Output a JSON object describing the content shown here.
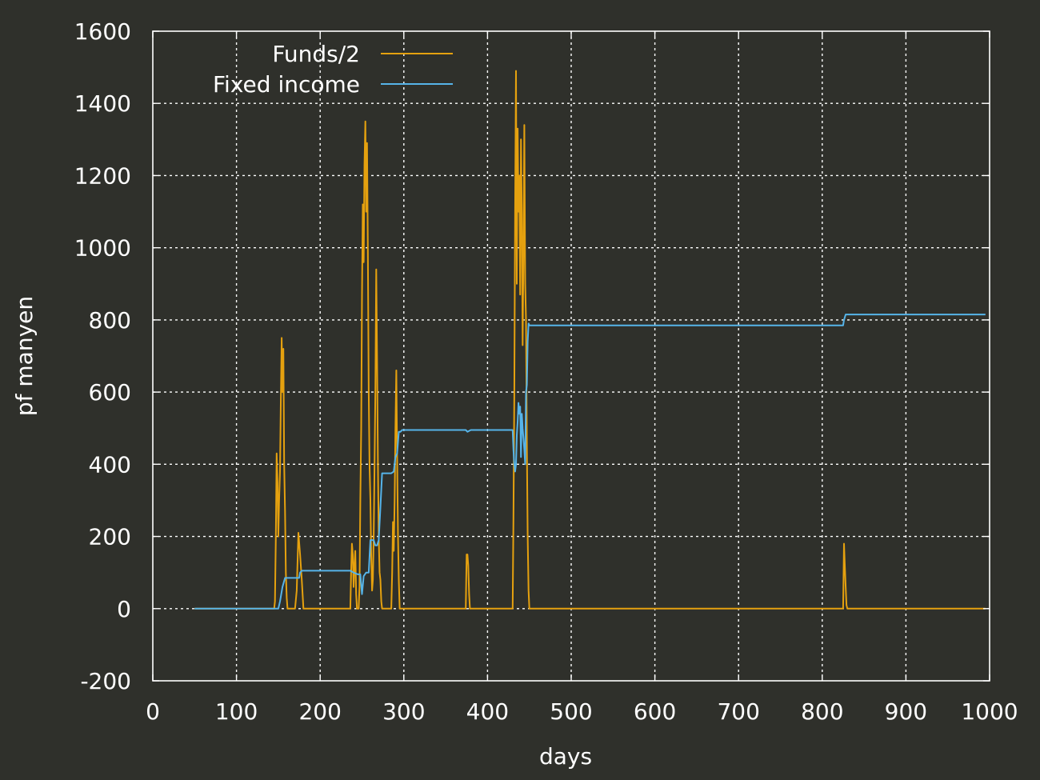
{
  "colors": {
    "background": "#2f302b",
    "axis": "#ffffff",
    "grid": "#ffffff",
    "text": "#ffffff"
  },
  "chart_data": {
    "type": "line",
    "title": "",
    "xlabel": "days",
    "ylabel": "pf manyen",
    "xlim": [
      0,
      1000
    ],
    "ylim": [
      -200,
      1600
    ],
    "xticks": [
      0,
      100,
      200,
      300,
      400,
      500,
      600,
      700,
      800,
      900,
      1000
    ],
    "yticks": [
      -200,
      0,
      200,
      400,
      600,
      800,
      1000,
      1200,
      1400,
      1600
    ],
    "grid": true,
    "legend_position": "top-left",
    "series": [
      {
        "name": "Funds/2",
        "color": "#e5a10f",
        "x": [
          50,
          145,
          146,
          147,
          148,
          149,
          150,
          151,
          152,
          153,
          154,
          155,
          156,
          157,
          158,
          159,
          160,
          161,
          162,
          170,
          172,
          174,
          176,
          178,
          180,
          236,
          237,
          238,
          239,
          240,
          241,
          242,
          243,
          244,
          245,
          246,
          247,
          248,
          249,
          250,
          251,
          252,
          253,
          254,
          255,
          256,
          257,
          258,
          259,
          260,
          261,
          262,
          263,
          264,
          265,
          266,
          267,
          268,
          269,
          270,
          271,
          272,
          273,
          274,
          275,
          276,
          277,
          278,
          280,
          285,
          286,
          287,
          288,
          289,
          290,
          291,
          292,
          293,
          294,
          295,
          296,
          297,
          298,
          299,
          300,
          374,
          375,
          376,
          377,
          378,
          379,
          380,
          381,
          430,
          431,
          432,
          433,
          434,
          435,
          436,
          437,
          438,
          439,
          440,
          441,
          442,
          443,
          444,
          445,
          446,
          447,
          448,
          449,
          450,
          451,
          452,
          825,
          826,
          827,
          828,
          829,
          830,
          831,
          832,
          995
        ],
        "values": [
          0,
          0,
          20,
          200,
          430,
          350,
          200,
          300,
          380,
          570,
          750,
          600,
          720,
          400,
          270,
          100,
          30,
          0,
          0,
          0,
          50,
          210,
          150,
          80,
          0,
          0,
          100,
          180,
          150,
          60,
          120,
          160,
          40,
          0,
          0,
          0,
          60,
          300,
          500,
          870,
          1120,
          960,
          1230,
          1350,
          1100,
          1290,
          1000,
          600,
          400,
          300,
          150,
          50,
          80,
          200,
          400,
          600,
          940,
          700,
          400,
          200,
          100,
          80,
          20,
          0,
          0,
          0,
          0,
          0,
          0,
          0,
          100,
          240,
          160,
          300,
          500,
          660,
          420,
          200,
          80,
          0,
          0,
          0,
          0,
          0,
          0,
          0,
          150,
          150,
          120,
          40,
          0,
          0,
          0,
          0,
          250,
          600,
          1100,
          1490,
          900,
          1330,
          1100,
          1200,
          870,
          1300,
          1100,
          730,
          1000,
          1340,
          900,
          800,
          450,
          200,
          50,
          0,
          0,
          0,
          0,
          180,
          120,
          60,
          10,
          0,
          0,
          0,
          0
        ]
      },
      {
        "name": "Fixed income",
        "color": "#56b4e9",
        "x": [
          50,
          150,
          152,
          155,
          158,
          160,
          170,
          172,
          175,
          176,
          178,
          180,
          236,
          240,
          245,
          248,
          250,
          252,
          255,
          258,
          260,
          262,
          264,
          266,
          268,
          270,
          272,
          274,
          276,
          280,
          285,
          288,
          290,
          292,
          294,
          296,
          298,
          300,
          374,
          376,
          380,
          430,
          431,
          432,
          433,
          434,
          435,
          436,
          437,
          438,
          439,
          440,
          441,
          442,
          443,
          444,
          445,
          446,
          447,
          448,
          449,
          450,
          451,
          452,
          824,
          825,
          826,
          828,
          995
        ],
        "values": [
          0,
          0,
          20,
          60,
          85,
          85,
          85,
          85,
          85,
          100,
          105,
          105,
          105,
          100,
          95,
          95,
          40,
          90,
          100,
          100,
          190,
          190,
          190,
          175,
          175,
          190,
          280,
          375,
          375,
          375,
          375,
          380,
          420,
          430,
          490,
          490,
          495,
          495,
          495,
          490,
          495,
          495,
          440,
          400,
          380,
          400,
          480,
          520,
          570,
          540,
          560,
          420,
          540,
          500,
          470,
          440,
          400,
          600,
          620,
          740,
          790,
          785,
          785,
          785,
          785,
          785,
          800,
          815,
          815
        ]
      }
    ]
  }
}
